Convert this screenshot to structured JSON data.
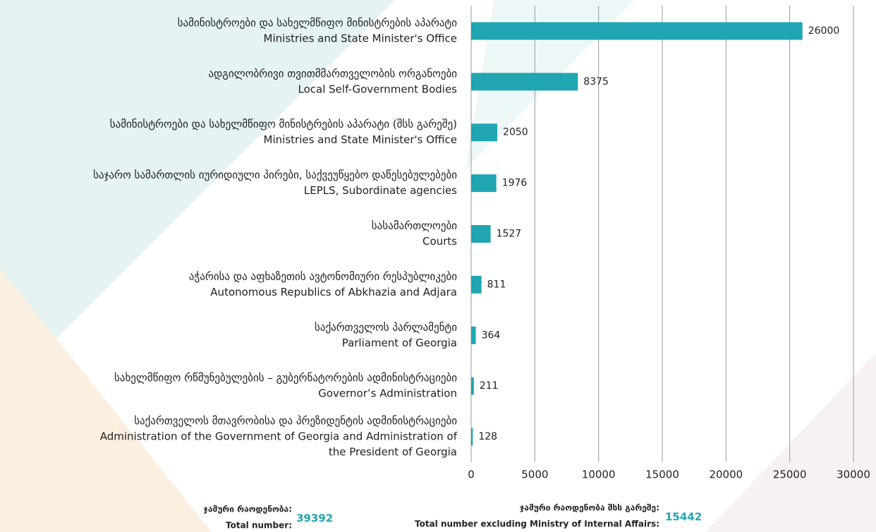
{
  "chart_data": {
    "type": "barh",
    "categories": [
      [
        "სამინისტროები და სახელმწიფო მინისტრების აპარატი",
        "Ministries and State Minister's Office"
      ],
      [
        "ადგილობრივი თვითმმართველობის ორგანოები",
        "Local Self-Government Bodies"
      ],
      [
        "სამინისტროები და სახელმწიფო მინისტრების აპარატი (შსს გარეშე)",
        "Ministries and State Minister's Office"
      ],
      [
        "საჯარო სამართლის იურიდიული პირები, საქვეუწყებო დაწესებულებები",
        "LEPLS, Subordinate agencies"
      ],
      [
        "სასამართლოები",
        "Courts"
      ],
      [
        "აჭარისა და აფხაზეთის ავტონომიური რესპუბლიკები",
        "Autonomous Republics of Abkhazia and Adjara"
      ],
      [
        "საქართველოს პარლამენტი",
        "Parliament of Georgia"
      ],
      [
        "სახელმწიფო რწმუნებულების – გუბერნატორების ადმინისტრაციები",
        "Governor’s Administration"
      ],
      [
        "საქართველოს მთავრობისა და პრეზიდენტის ადმინისტრაციები",
        "Administration of the Government of Georgia and Administration of",
        "the President of Georgia"
      ]
    ],
    "values": [
      26000,
      8375,
      2050,
      1976,
      1527,
      811,
      364,
      211,
      128
    ],
    "color": "#1fa6b2",
    "xlim": [
      0,
      30000
    ],
    "xticks": [
      0,
      5000,
      10000,
      15000,
      20000,
      25000,
      30000
    ],
    "grid": true,
    "totals": [
      {
        "labels": [
          "ჯამური რაოდენობა:",
          "Total number:"
        ],
        "value": 39392
      },
      {
        "labels": [
          "ჯამური რაოდენობა შსს გარეშე:",
          "Total number excluding Ministry of Internal Affairs:"
        ],
        "value": 15442
      }
    ]
  }
}
